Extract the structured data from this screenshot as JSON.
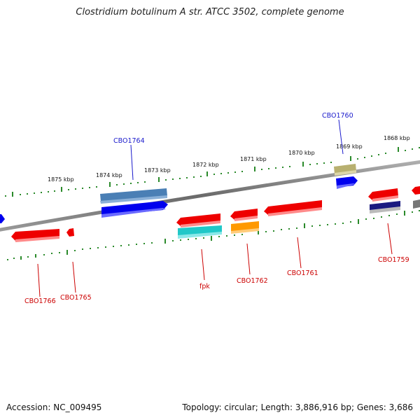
{
  "title": "Clostridium botulinum A str. ATCC 3502, complete genome",
  "accession": "Accession: NC_009495",
  "summary": "Topology: circular; Length: 3,886,916 bp; Genes: 3,686",
  "ticks": [
    "1875 kbp",
    "1874 kbp",
    "1873 kbp",
    "1872 kbp",
    "1871 kbp",
    "1870 kbp",
    "1869 kbp",
    "1868 kbp"
  ],
  "gene_labels": [
    {
      "text": "CBO1764",
      "color": "#1a1acc"
    },
    {
      "text": "CBO1760",
      "color": "#1a1acc"
    },
    {
      "text": "CBO1766",
      "color": "#cc0000"
    },
    {
      "text": "CBO1765",
      "color": "#cc0000"
    },
    {
      "text": "fpk",
      "color": "#cc0000"
    },
    {
      "text": "CBO1762",
      "color": "#cc0000"
    },
    {
      "text": "CBO1761",
      "color": "#cc0000"
    },
    {
      "text": "CBO1759",
      "color": "#cc0000"
    }
  ],
  "colors": {
    "backbone": "#808080",
    "tick": "#2a8a2a",
    "cds_forward": "#0000ee",
    "cds_reverse": "#ee0000",
    "cog_steelblue": "#4a7fb5",
    "cog_khaki": "#b8b070",
    "cog_cyan": "#20c8c8",
    "cog_orange": "#ff9900",
    "cog_navy": "#1a1a80",
    "cog_grey": "#999999"
  }
}
